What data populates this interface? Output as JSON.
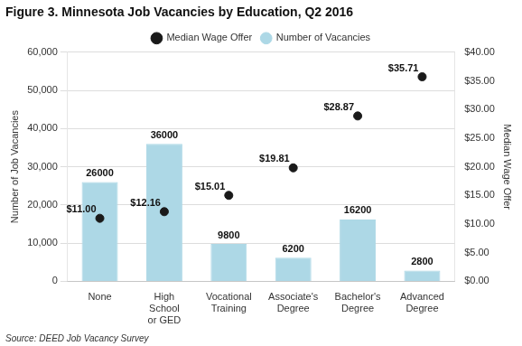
{
  "chart_data": {
    "type": "bar",
    "title": "Figure 3. Minnesota Job Vacancies by Education, Q2 2016",
    "source": "Source: DEED Job Vacancy Survey",
    "categories": [
      "None",
      "High\nSchool\nor GED",
      "Vocational\nTraining",
      "Associate's\nDegree",
      "Bachelor's\nDegree",
      "Advanced\nDegree"
    ],
    "series": [
      {
        "name": "Number of Vacancies",
        "type": "bar",
        "color": "#add8e6",
        "values": [
          26000,
          36000,
          9800,
          6200,
          16200,
          2800
        ]
      },
      {
        "name": "Median Wage Offer",
        "type": "scatter",
        "color": "#1a1a1a",
        "axis": "y2",
        "marker": "circle",
        "values": [
          11.0,
          12.16,
          15.01,
          19.81,
          28.87,
          35.71
        ],
        "value_labels": [
          "$11.00",
          "$12.16",
          "$15.01",
          "$19.81",
          "$28.87",
          "$35.71"
        ]
      }
    ],
    "ylabel": "Number of Job Vacancies",
    "y2label": "Median Wage Offer",
    "ylim": [
      0,
      60000
    ],
    "yticks": [
      0,
      {
        "value": 10000,
        "label": "10,000"
      },
      {
        "value": 20000,
        "label": "20,000"
      },
      {
        "value": 30000,
        "label": "30,000"
      },
      {
        "value": 40000,
        "label": "40,000"
      },
      {
        "value": 50000,
        "label": "50,000"
      },
      {
        "value": 60000,
        "label": "60,000"
      }
    ],
    "y2lim": [
      0,
      40.0
    ],
    "y2ticks": [
      {
        "value": 0,
        "label": "$0.00"
      },
      {
        "value": 5.0,
        "label": "$5.00"
      },
      {
        "value": 10.0,
        "label": "$10.00"
      },
      {
        "value": 15.0,
        "label": "$15.00"
      },
      {
        "value": 20.0,
        "label": "$20.00"
      },
      {
        "value": 25.0,
        "label": "$25.00"
      },
      {
        "value": 30.0,
        "label": "$30.00"
      },
      {
        "value": 35.0,
        "label": "$35.00"
      },
      {
        "value": 40.0,
        "label": "$40.00"
      }
    ],
    "grid": true,
    "legend": "top",
    "data_labels": true
  }
}
